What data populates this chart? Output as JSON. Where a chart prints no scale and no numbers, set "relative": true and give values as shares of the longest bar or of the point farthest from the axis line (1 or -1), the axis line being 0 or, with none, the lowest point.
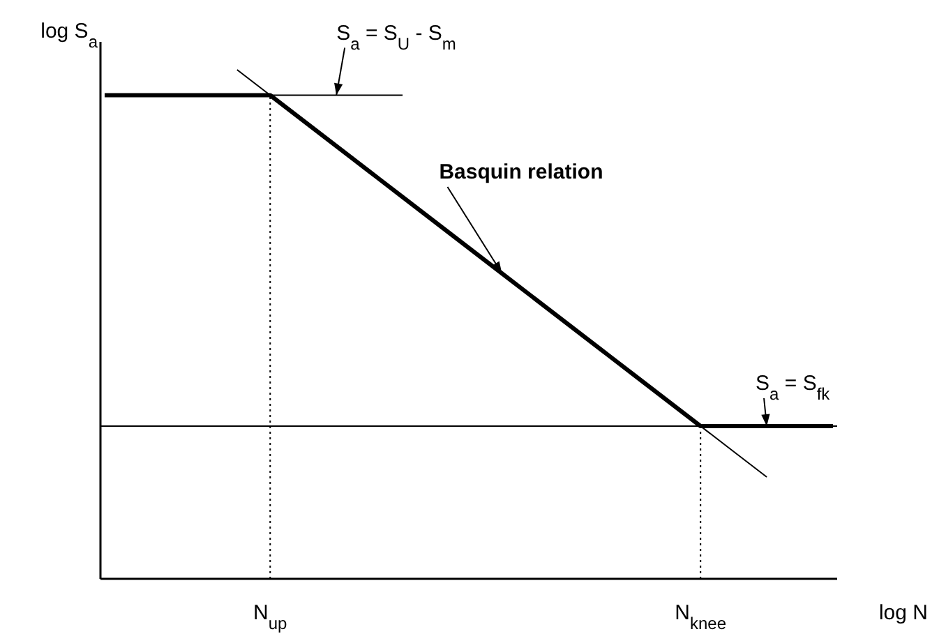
{
  "chart_data": {
    "type": "line",
    "relative": true,
    "xlabel": "log N",
    "ylabel": "log S$_{a}$",
    "categories": [
      null,
      null,
      null,
      null,
      null,
      "N$_{up}$",
      null,
      null,
      null,
      null,
      null,
      null,
      null,
      null,
      null,
      null,
      null,
      null,
      "N$_{knee}$",
      null,
      null,
      null,
      null
    ],
    "tick_labels": "x",
    "marker": "none",
    "series": [
      {
        "color": "#000000",
        "values": [
          0.95,
          0.95,
          0.95,
          0.95,
          0.95,
          0.95,
          0.9,
          0.85,
          0.8,
          0.75,
          0.7,
          0.65,
          0.6,
          0.55,
          0.5,
          0.45,
          0.4,
          0.35,
          0.3,
          0.3,
          0.3,
          0.3,
          0.3
        ],
        "line_style": "solid"
      },
      {
        "color": "#000000",
        "values": [
          null,
          null,
          null,
          null,
          1,
          0.95,
          0.9,
          0.85,
          0.8,
          0.75,
          0.7,
          0.65,
          0.6,
          0.55,
          0.5,
          0.45,
          0.4,
          0.35,
          0.3,
          0.25,
          0.2,
          null,
          null
        ],
        "line_style": "solid"
      },
      {
        "color": "#000000",
        "values": [
          null,
          null,
          null,
          null,
          null,
          0.95,
          0.95,
          0.95,
          0.95,
          0.95,
          null,
          null,
          null,
          null,
          null,
          null,
          null,
          null,
          null,
          null,
          null,
          null,
          null
        ],
        "line_style": "solid"
      }
    ],
    "ref_lines": [
      {
        "axis": "y",
        "value": 0.3,
        "color": "#000000",
        "line_style": "solid"
      },
      {
        "axis": "x",
        "value": "N$_{up}$",
        "color": "#000000",
        "line_style": "dotted"
      },
      {
        "axis": "x",
        "value": "N$_{knee}$",
        "color": "#000000",
        "line_style": "dotted"
      }
    ],
    "annotations": [
      {
        "text": "S$_{a}$ = S$_{U}$ - S$_{m}$",
        "y": 0.95
      },
      "Basquin relation",
      {
        "text": "S$_{a}$ = S$_{fk}$",
        "y": 0.3
      }
    ]
  }
}
